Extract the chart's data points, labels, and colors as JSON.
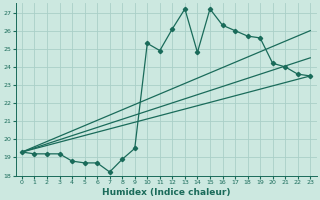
{
  "xlabel": "Humidex (Indice chaleur)",
  "background_color": "#cce8e0",
  "grid_color": "#aacfc8",
  "line_color": "#1a6b5a",
  "xlim": [
    -0.5,
    23.5
  ],
  "ylim": [
    18,
    27.5
  ],
  "xticks": [
    0,
    1,
    2,
    3,
    4,
    5,
    6,
    7,
    8,
    9,
    10,
    11,
    12,
    13,
    14,
    15,
    16,
    17,
    18,
    19,
    20,
    21,
    22,
    23
  ],
  "yticks": [
    18,
    19,
    20,
    21,
    22,
    23,
    24,
    25,
    26,
    27
  ],
  "line1_x": [
    0,
    1,
    2,
    3,
    4,
    5,
    6,
    7,
    8,
    9,
    10,
    11,
    12,
    13,
    14,
    15,
    16,
    17,
    18,
    19,
    20,
    21,
    22,
    23
  ],
  "line1_y": [
    19.3,
    19.2,
    19.2,
    19.2,
    18.8,
    18.7,
    18.7,
    18.2,
    18.9,
    19.5,
    25.3,
    24.9,
    26.1,
    27.2,
    24.8,
    27.2,
    26.3,
    26.0,
    25.7,
    25.6,
    24.2,
    24.0,
    23.6,
    23.5
  ],
  "line2_x": [
    0,
    23
  ],
  "line2_y": [
    19.3,
    26.0
  ],
  "line3_x": [
    0,
    23
  ],
  "line3_y": [
    19.3,
    23.5
  ],
  "line4_x": [
    0,
    23
  ],
  "line4_y": [
    19.3,
    24.5
  ]
}
